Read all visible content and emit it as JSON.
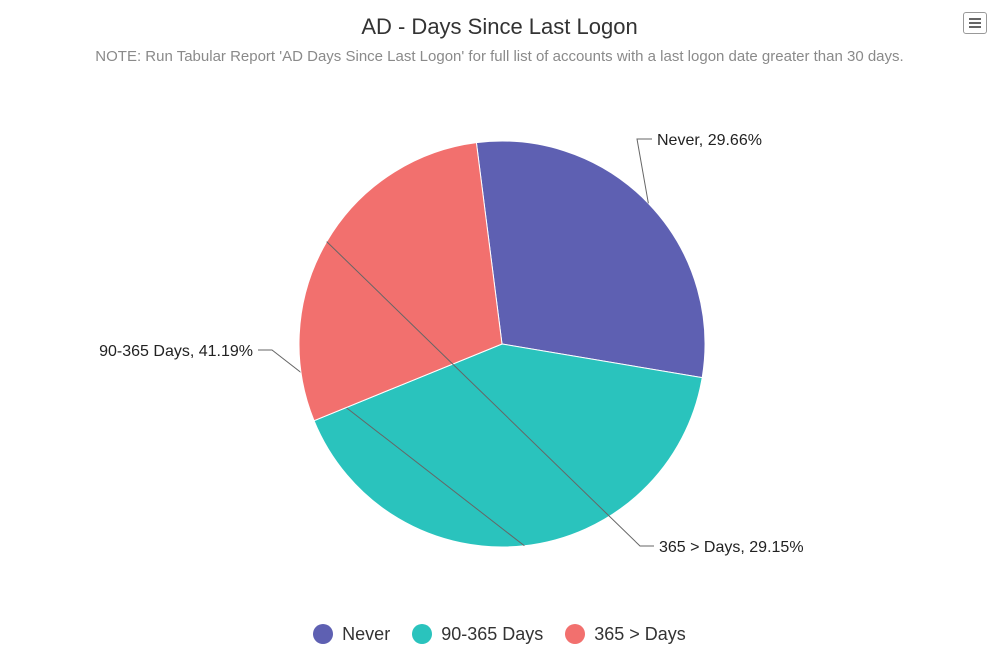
{
  "menu": {
    "icon": "hamburger-menu-icon"
  },
  "chart_data": {
    "type": "pie",
    "title": "AD - Days Since Last Logon",
    "subtitle": "NOTE: Run Tabular Report 'AD Days Since Last Logon' for full list of accounts with a last logon date greater than 30 days.",
    "categories": [
      "Never",
      "90-365 Days",
      "365 > Days"
    ],
    "values": [
      29.66,
      41.19,
      29.15
    ],
    "data_labels": [
      "Never, 29.66%",
      "90-365 Days, 41.19%",
      "365 > Days, 29.15%"
    ],
    "colors": [
      "#5E60B2",
      "#2AC3BD",
      "#F2706E"
    ],
    "legend": {
      "placement": "bottom",
      "items": [
        {
          "label": "Never",
          "color": "#5E60B2"
        },
        {
          "label": "90-365 Days",
          "color": "#2AC3BD"
        },
        {
          "label": "365 > Days",
          "color": "#F2706E"
        }
      ]
    }
  }
}
